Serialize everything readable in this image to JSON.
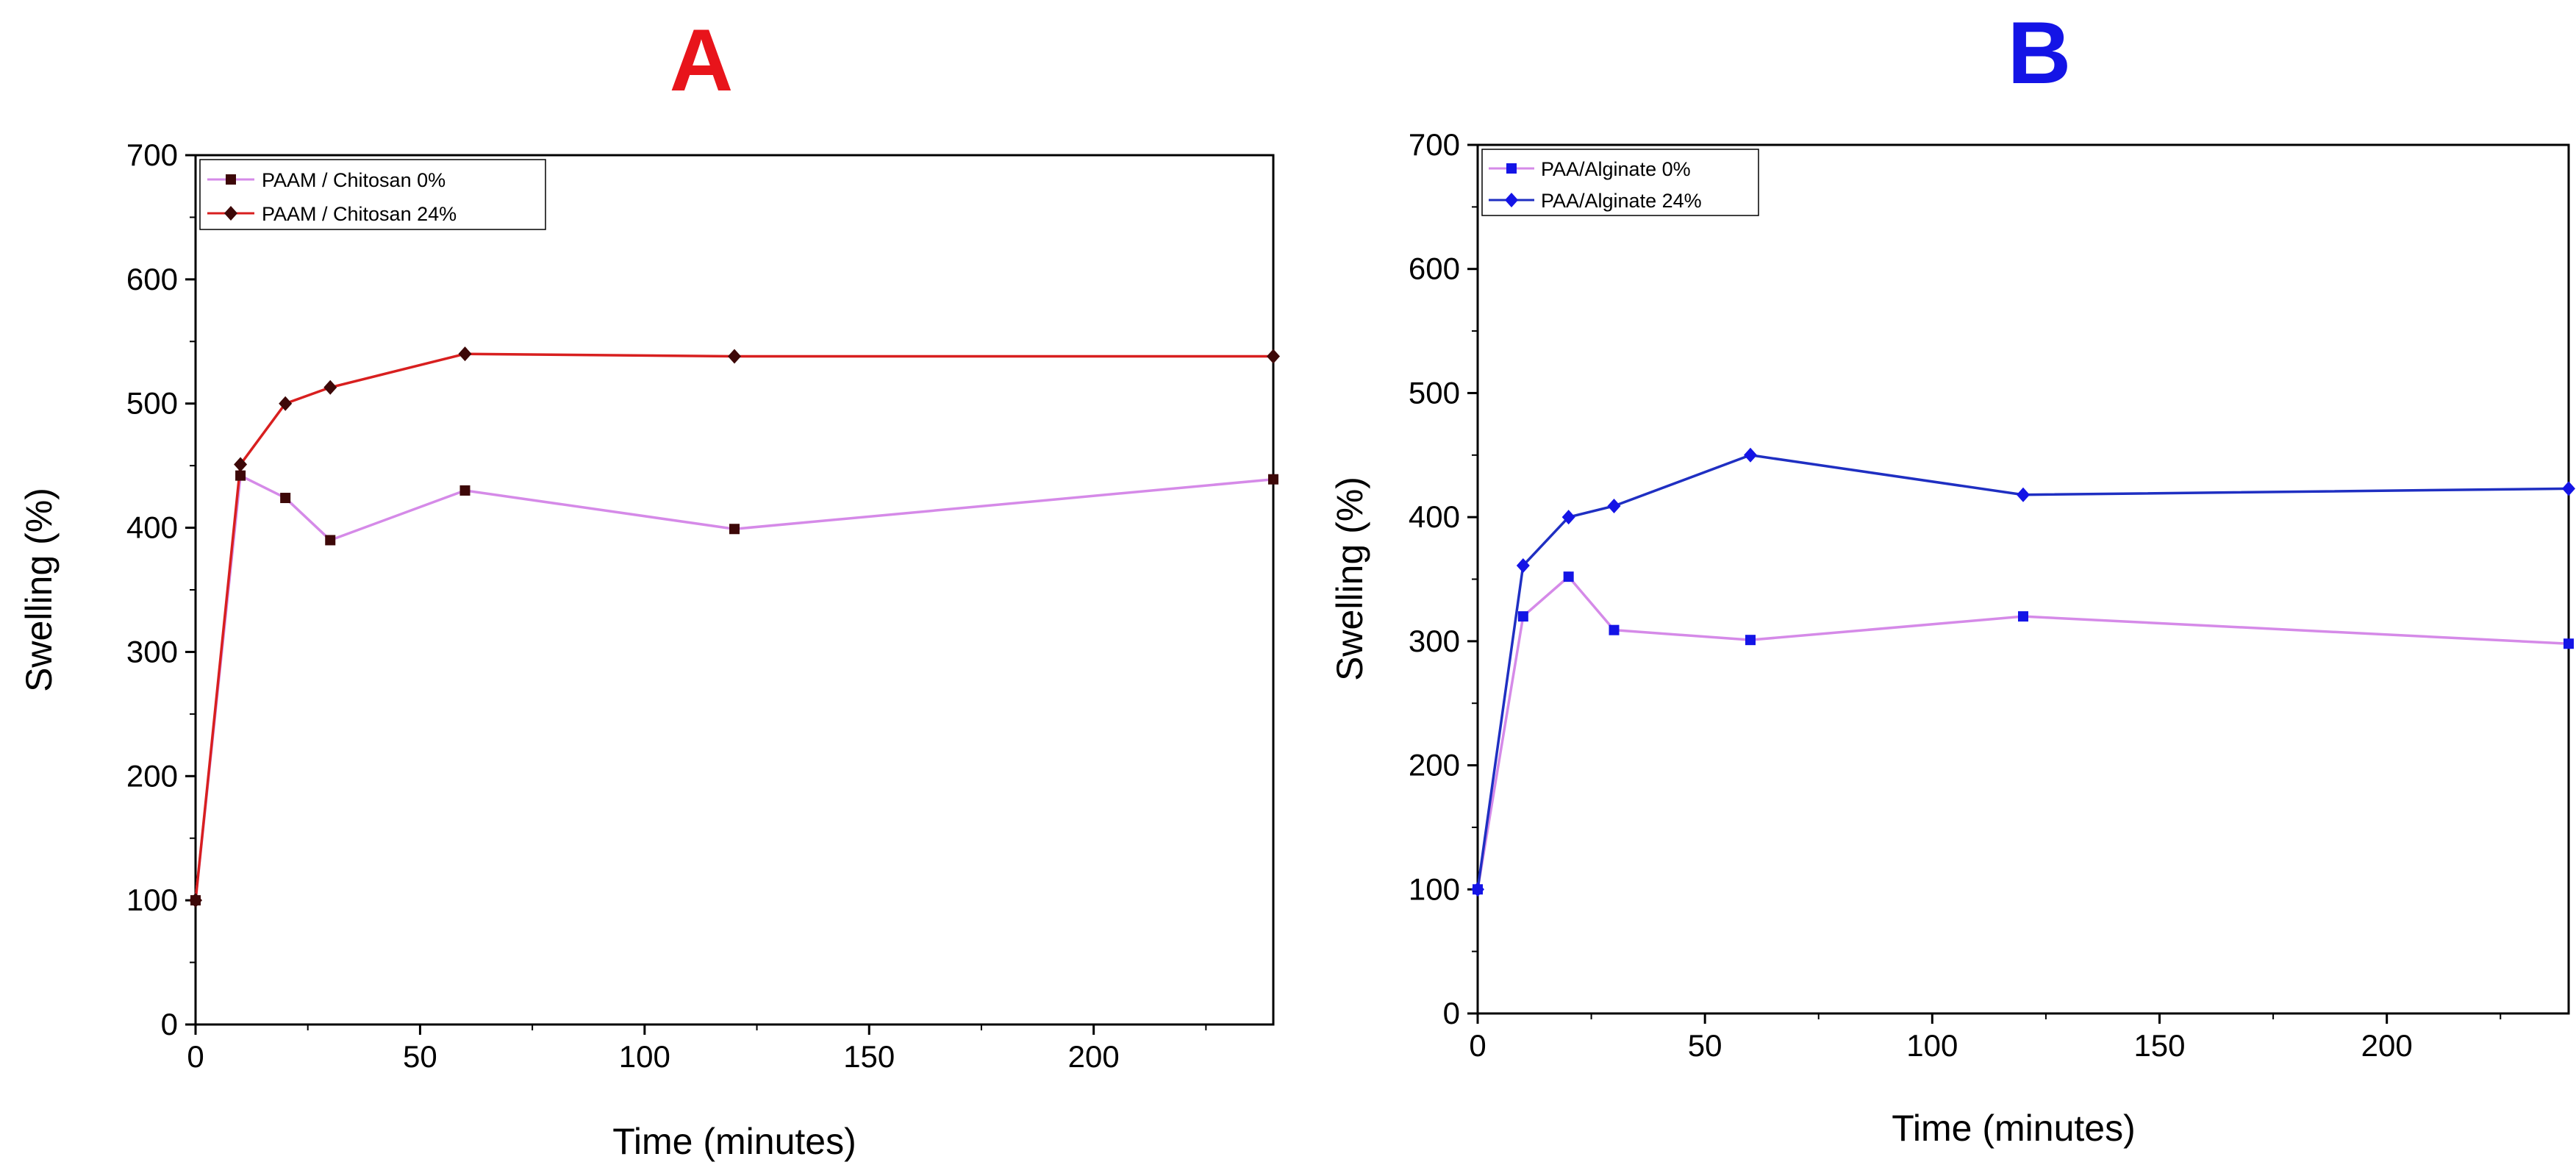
{
  "figure": {
    "panels": [
      {
        "letter": "A",
        "letter_color": "#e8141b"
      },
      {
        "letter": "B",
        "letter_color": "#1414e6"
      }
    ]
  },
  "chart_data": [
    {
      "type": "line",
      "title": "A",
      "xlabel": "Time (minutes)",
      "ylabel": "Swelling (%)",
      "xlim": [
        0,
        240
      ],
      "ylim": [
        0,
        700
      ],
      "x_ticks": [
        0,
        50,
        100,
        150,
        200
      ],
      "y_ticks": [
        0,
        100,
        200,
        300,
        400,
        500,
        600,
        700
      ],
      "grid": false,
      "legend_position": "top-left",
      "x": [
        0,
        10,
        20,
        30,
        60,
        120,
        240
      ],
      "series": [
        {
          "name": "PAAM / Chitosan 0%",
          "line_color": "#d58ae8",
          "marker_color": "#3d0808",
          "marker": "square",
          "values": [
            100,
            442,
            424,
            390,
            430,
            399,
            439
          ]
        },
        {
          "name": "PAAM / Chitosan 24%",
          "line_color": "#d81f1f",
          "marker_color": "#3d0808",
          "marker": "diamond",
          "values": [
            100,
            451,
            500,
            513,
            540,
            538,
            538
          ]
        }
      ]
    },
    {
      "type": "line",
      "title": "B",
      "xlabel": "Time (minutes)",
      "ylabel": "Swelling (%)",
      "xlim": [
        0,
        240
      ],
      "ylim": [
        0,
        700
      ],
      "x_ticks": [
        0,
        50,
        100,
        150,
        200
      ],
      "y_ticks": [
        0,
        100,
        200,
        300,
        400,
        500,
        600,
        700
      ],
      "grid": false,
      "legend_position": "top-left",
      "x": [
        0,
        10,
        20,
        30,
        60,
        120,
        240
      ],
      "series": [
        {
          "name": "PAA/Alginate 0%",
          "line_color": "#d58ae8",
          "marker_color": "#1414e6",
          "marker": "square",
          "values": [
            100,
            320,
            352,
            309,
            301,
            320,
            298
          ]
        },
        {
          "name": "PAA/Alginate 24%",
          "line_color": "#1f2fc2",
          "marker_color": "#1414e6",
          "marker": "diamond",
          "values": [
            100,
            361,
            400,
            409,
            450,
            418,
            423
          ]
        }
      ]
    }
  ]
}
